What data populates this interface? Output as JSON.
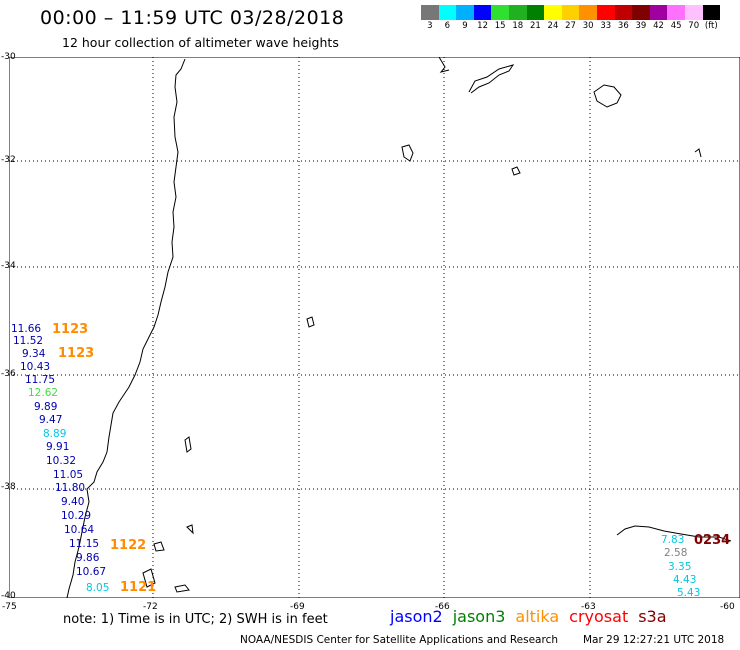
{
  "header": {
    "title": "00:00 – 11:59 UTC 03/28/2018",
    "subtitle": "12 hour collection of altimeter wave heights"
  },
  "legend": {
    "colors": [
      "#777777",
      "#00ffff",
      "#00b0ff",
      "#0000ff",
      "#30e030",
      "#20b020",
      "#008000",
      "#ffff00",
      "#ffd000",
      "#ff9000",
      "#ff0000",
      "#c00000",
      "#800000",
      "#a000a0",
      "#ff70ff",
      "#ffc0ff",
      "#000000"
    ],
    "labels": [
      "3",
      "6",
      "9",
      "12",
      "15",
      "18",
      "21",
      "24",
      "27",
      "30",
      "33",
      "36",
      "39",
      "42",
      "45",
      "70",
      "(ft)"
    ]
  },
  "axes": {
    "lat_ticks": [
      "-30",
      "-32",
      "-34",
      "-36",
      "-38",
      "-40"
    ],
    "lon_ticks": [
      "-75",
      "-72",
      "-69",
      "-66",
      "-63",
      "-60"
    ]
  },
  "observations": [
    {
      "value": "11.66",
      "color": "#0000b0"
    },
    {
      "value": "11.52",
      "color": "#0000b0"
    },
    {
      "value": "9.34",
      "color": "#0000b0"
    },
    {
      "value": "10.43",
      "color": "#0000b0"
    },
    {
      "value": "11.75",
      "color": "#0000b0"
    },
    {
      "value": "12.62",
      "color": "#40e040"
    },
    {
      "value": "9.89",
      "color": "#0000b0"
    },
    {
      "value": "9.47",
      "color": "#0000b0"
    },
    {
      "value": "8.89",
      "color": "#00c8e0"
    },
    {
      "value": "9.91",
      "color": "#0000b0"
    },
    {
      "value": "10.32",
      "color": "#0000b0"
    },
    {
      "value": "11.05",
      "color": "#0000b0"
    },
    {
      "value": "11.80",
      "color": "#0000b0"
    },
    {
      "value": "9.40",
      "color": "#0000b0"
    },
    {
      "value": "10.29",
      "color": "#0000b0"
    },
    {
      "value": "10.64",
      "color": "#0000b0"
    },
    {
      "value": "11.15",
      "color": "#0000b0"
    },
    {
      "value": "9.86",
      "color": "#0000b0"
    },
    {
      "value": "10.67",
      "color": "#0000b0"
    },
    {
      "value": "8.05",
      "color": "#00c8e0"
    },
    {
      "value": "7.83",
      "color": "#00c8e0"
    },
    {
      "value": "2.58",
      "color": "#808080"
    },
    {
      "value": "3.35",
      "color": "#00c8e0"
    },
    {
      "value": "4.43",
      "color": "#00c8e0"
    },
    {
      "value": "5.43",
      "color": "#00c8e0"
    }
  ],
  "time_labels": [
    "1123",
    "1123",
    "1122",
    "1121",
    "0234"
  ],
  "footer": {
    "note": "note: 1) Time is in UTC; 2) SWH is in feet",
    "satellites": [
      {
        "name": "jason2",
        "color": "#0000ff"
      },
      {
        "name": "jason3",
        "color": "#008000"
      },
      {
        "name": "altika",
        "color": "#ff9000"
      },
      {
        "name": "cryosat",
        "color": "#ff0000"
      },
      {
        "name": "s3a",
        "color": "#800000"
      }
    ],
    "credit": "NOAA/NESDIS Center for Satellite Applications and Research",
    "timestamp": "Mar 29 12:27:21 UTC 2018"
  }
}
